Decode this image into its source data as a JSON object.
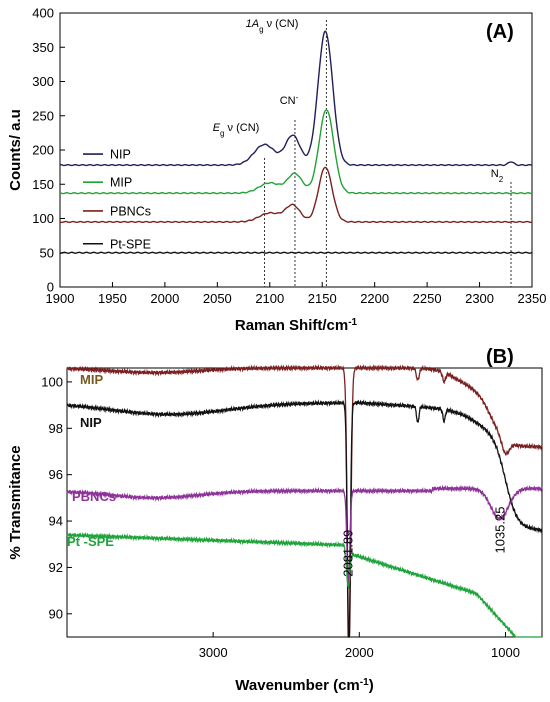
{
  "chart_data": [
    {
      "type": "line",
      "panel_label": "(A)",
      "xlabel": "Raman Shift/cm",
      "xlabel_sup": "-1",
      "ylabel": "Counts/ a.u",
      "xlim": [
        1900,
        2350
      ],
      "ylim": [
        0,
        400
      ],
      "x_ticks": [
        "1900",
        "1950",
        "2000",
        "2050",
        "2100",
        "2150",
        "2200",
        "2250",
        "2300",
        "2350"
      ],
      "y_ticks": [
        "0",
        "50",
        "100",
        "150",
        "200",
        "250",
        "300",
        "350",
        "400"
      ],
      "grid": false,
      "legend": "left",
      "series": [
        {
          "name": "NIP",
          "color": "#1f1f5a",
          "baseline": 178,
          "peaks": [
            [
              2095,
              30,
              10
            ],
            [
              2122,
              43,
              7
            ],
            [
              2153,
              195,
              7
            ],
            [
              2330,
              5,
              2.5
            ]
          ]
        },
        {
          "name": "MIP",
          "color": "#21a234",
          "baseline": 137,
          "peaks": [
            [
              2100,
              15,
              10
            ],
            [
              2124,
              28,
              7
            ],
            [
              2154,
              122,
              7
            ]
          ]
        },
        {
          "name": "PBNCs",
          "color": "#7d1f1f",
          "baseline": 95,
          "peaks": [
            [
              2100,
              13,
              10
            ],
            [
              2122,
              24,
              7
            ],
            [
              2153,
              80,
              6.5
            ]
          ]
        },
        {
          "name": "Pt-SPE",
          "color": "#111111",
          "baseline": 50,
          "peaks": []
        }
      ],
      "annotations": [
        {
          "label": "E",
          "sub": "g",
          "rest": " ν (CN)",
          "x": 2095
        },
        {
          "label": "CN",
          "sup": "-",
          "rest": "",
          "x": 2124
        },
        {
          "label": "1A",
          "sub": "g",
          "rest": " ν (CN)",
          "x": 2154
        },
        {
          "label": "N",
          "sub": "2",
          "rest": "",
          "x": 2330
        }
      ]
    },
    {
      "type": "line",
      "panel_label": "(B)",
      "xlabel": "Wavenumber (cm",
      "xlabel_sup": "-1",
      "xlabel_end": ")",
      "ylabel": "% Transmitance",
      "xlim": [
        4000,
        750
      ],
      "ylim": [
        89,
        100.6
      ],
      "x_ticks": [
        "3000",
        "2000",
        "1000"
      ],
      "x_tick_values": [
        3000,
        2000,
        1000
      ],
      "y_ticks": [
        "90",
        "92",
        "94",
        "96",
        "98",
        "100"
      ],
      "y_tick_values": [
        90,
        92,
        94,
        96,
        98,
        100
      ],
      "grid": false,
      "series": [
        {
          "name": "MIP",
          "color": "#7a2020",
          "label_color": "#7a5a1e"
        },
        {
          "name": "NIP",
          "color": "#111111",
          "label_color": "#111111"
        },
        {
          "name": "PBNCs",
          "color": "#8e3399",
          "label_color": "#8e3399"
        },
        {
          "name": "Pt -SPE",
          "color": "#1fa33b",
          "label_color": "#1fa33b"
        }
      ],
      "annotations": [
        {
          "text": "2081.89",
          "x": 2075,
          "y": 91.6
        },
        {
          "text": "1035.25",
          "x": 1035,
          "y": 92.6
        }
      ]
    }
  ]
}
